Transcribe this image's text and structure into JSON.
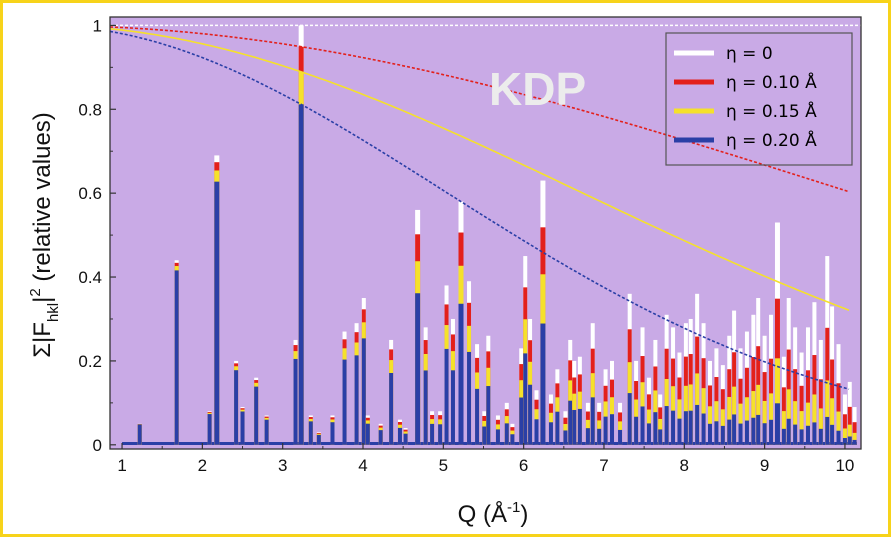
{
  "chart_data": {
    "type": "bar",
    "title": "",
    "annotation": "KDP",
    "xlabel_parts": {
      "main": "Q (Å",
      "sup": "-1",
      "end": ")"
    },
    "ylabel_parts": {
      "pre": "Σ|F",
      "sub": "hkl",
      "mid": "|",
      "sup": "2",
      "post": " (relative values)"
    },
    "xlim": [
      0.85,
      10.2
    ],
    "ylim": [
      -0.01,
      1.02
    ],
    "xticks": [
      "1",
      "2",
      "3",
      "4",
      "5",
      "6",
      "7",
      "8",
      "9",
      "10"
    ],
    "yticks": [
      "0",
      "0.2",
      "0.4",
      "0.6",
      "0.8",
      "1"
    ],
    "grid": false,
    "legend_position": "top-right",
    "background": "#c9aae6",
    "series": [
      {
        "name": "η = 0",
        "color": "#ffffff"
      },
      {
        "name": "η = 0.10 Å",
        "color": "#e3201b"
      },
      {
        "name": "η = 0.15 Å",
        "color": "#f5e12b"
      },
      {
        "name": "η = 0.20 Å",
        "color": "#2a3fa6"
      }
    ],
    "eta": [
      0,
      0.1,
      0.15,
      0.2
    ],
    "peaks": [
      {
        "q": 1.22,
        "h": 0.05
      },
      {
        "q": 1.68,
        "h": 0.44
      },
      {
        "q": 2.09,
        "h": 0.08
      },
      {
        "q": 2.18,
        "h": 0.69
      },
      {
        "q": 2.42,
        "h": 0.2
      },
      {
        "q": 2.5,
        "h": 0.09
      },
      {
        "q": 2.67,
        "h": 0.16
      },
      {
        "q": 2.8,
        "h": 0.07
      },
      {
        "q": 3.16,
        "h": 0.25
      },
      {
        "q": 3.23,
        "h": 1.0
      },
      {
        "q": 3.35,
        "h": 0.07
      },
      {
        "q": 3.45,
        "h": 0.03
      },
      {
        "q": 3.62,
        "h": 0.07
      },
      {
        "q": 3.77,
        "h": 0.27
      },
      {
        "q": 3.92,
        "h": 0.29
      },
      {
        "q": 4.01,
        "h": 0.35
      },
      {
        "q": 4.06,
        "h": 0.07
      },
      {
        "q": 4.22,
        "h": 0.05
      },
      {
        "q": 4.35,
        "h": 0.25
      },
      {
        "q": 4.46,
        "h": 0.06
      },
      {
        "q": 4.53,
        "h": 0.04
      },
      {
        "q": 4.68,
        "h": 0.56
      },
      {
        "q": 4.78,
        "h": 0.28
      },
      {
        "q": 4.86,
        "h": 0.08
      },
      {
        "q": 4.96,
        "h": 0.08
      },
      {
        "q": 5.04,
        "h": 0.38
      },
      {
        "q": 5.12,
        "h": 0.3
      },
      {
        "q": 5.22,
        "h": 0.58
      },
      {
        "q": 5.32,
        "h": 0.39
      },
      {
        "q": 5.42,
        "h": 0.24
      },
      {
        "q": 5.51,
        "h": 0.08
      },
      {
        "q": 5.56,
        "h": 0.26
      },
      {
        "q": 5.68,
        "h": 0.07
      },
      {
        "q": 5.79,
        "h": 0.1
      },
      {
        "q": 5.86,
        "h": 0.05
      },
      {
        "q": 5.97,
        "h": 0.23
      },
      {
        "q": 6.02,
        "h": 0.45
      },
      {
        "q": 6.08,
        "h": 0.3
      },
      {
        "q": 6.16,
        "h": 0.13
      },
      {
        "q": 6.24,
        "h": 0.63
      },
      {
        "q": 6.34,
        "h": 0.12
      },
      {
        "q": 6.42,
        "h": 0.18
      },
      {
        "q": 6.52,
        "h": 0.08
      },
      {
        "q": 6.58,
        "h": 0.25
      },
      {
        "q": 6.63,
        "h": 0.2
      },
      {
        "q": 6.7,
        "h": 0.21
      },
      {
        "q": 6.8,
        "h": 0.1
      },
      {
        "q": 6.86,
        "h": 0.29
      },
      {
        "q": 6.94,
        "h": 0.1
      },
      {
        "q": 7.02,
        "h": 0.18
      },
      {
        "q": 7.1,
        "h": 0.2
      },
      {
        "q": 7.2,
        "h": 0.1
      },
      {
        "q": 7.32,
        "h": 0.36
      },
      {
        "q": 7.4,
        "h": 0.2
      },
      {
        "q": 7.48,
        "h": 0.28
      },
      {
        "q": 7.56,
        "h": 0.16
      },
      {
        "q": 7.64,
        "h": 0.25
      },
      {
        "q": 7.7,
        "h": 0.12
      },
      {
        "q": 7.78,
        "h": 0.31
      },
      {
        "q": 7.86,
        "h": 0.28
      },
      {
        "q": 7.94,
        "h": 0.22
      },
      {
        "q": 8.02,
        "h": 0.29
      },
      {
        "q": 8.08,
        "h": 0.3
      },
      {
        "q": 8.16,
        "h": 0.36
      },
      {
        "q": 8.24,
        "h": 0.29
      },
      {
        "q": 8.32,
        "h": 0.2
      },
      {
        "q": 8.4,
        "h": 0.23
      },
      {
        "q": 8.48,
        "h": 0.19
      },
      {
        "q": 8.56,
        "h": 0.26
      },
      {
        "q": 8.62,
        "h": 0.32
      },
      {
        "q": 8.7,
        "h": 0.23
      },
      {
        "q": 8.78,
        "h": 0.27
      },
      {
        "q": 8.86,
        "h": 0.31
      },
      {
        "q": 8.92,
        "h": 0.35
      },
      {
        "q": 9.0,
        "h": 0.26
      },
      {
        "q": 9.08,
        "h": 0.31
      },
      {
        "q": 9.16,
        "h": 0.53
      },
      {
        "q": 9.24,
        "h": 0.21
      },
      {
        "q": 9.3,
        "h": 0.35
      },
      {
        "q": 9.38,
        "h": 0.28
      },
      {
        "q": 9.46,
        "h": 0.22
      },
      {
        "q": 9.54,
        "h": 0.28
      },
      {
        "q": 9.62,
        "h": 0.34
      },
      {
        "q": 9.7,
        "h": 0.25
      },
      {
        "q": 9.78,
        "h": 0.45
      },
      {
        "q": 9.84,
        "h": 0.33
      },
      {
        "q": 9.92,
        "h": 0.24
      },
      {
        "q": 10.0,
        "h": 0.12
      },
      {
        "q": 10.06,
        "h": 0.15
      },
      {
        "q": 10.12,
        "h": 0.09
      }
    ]
  }
}
